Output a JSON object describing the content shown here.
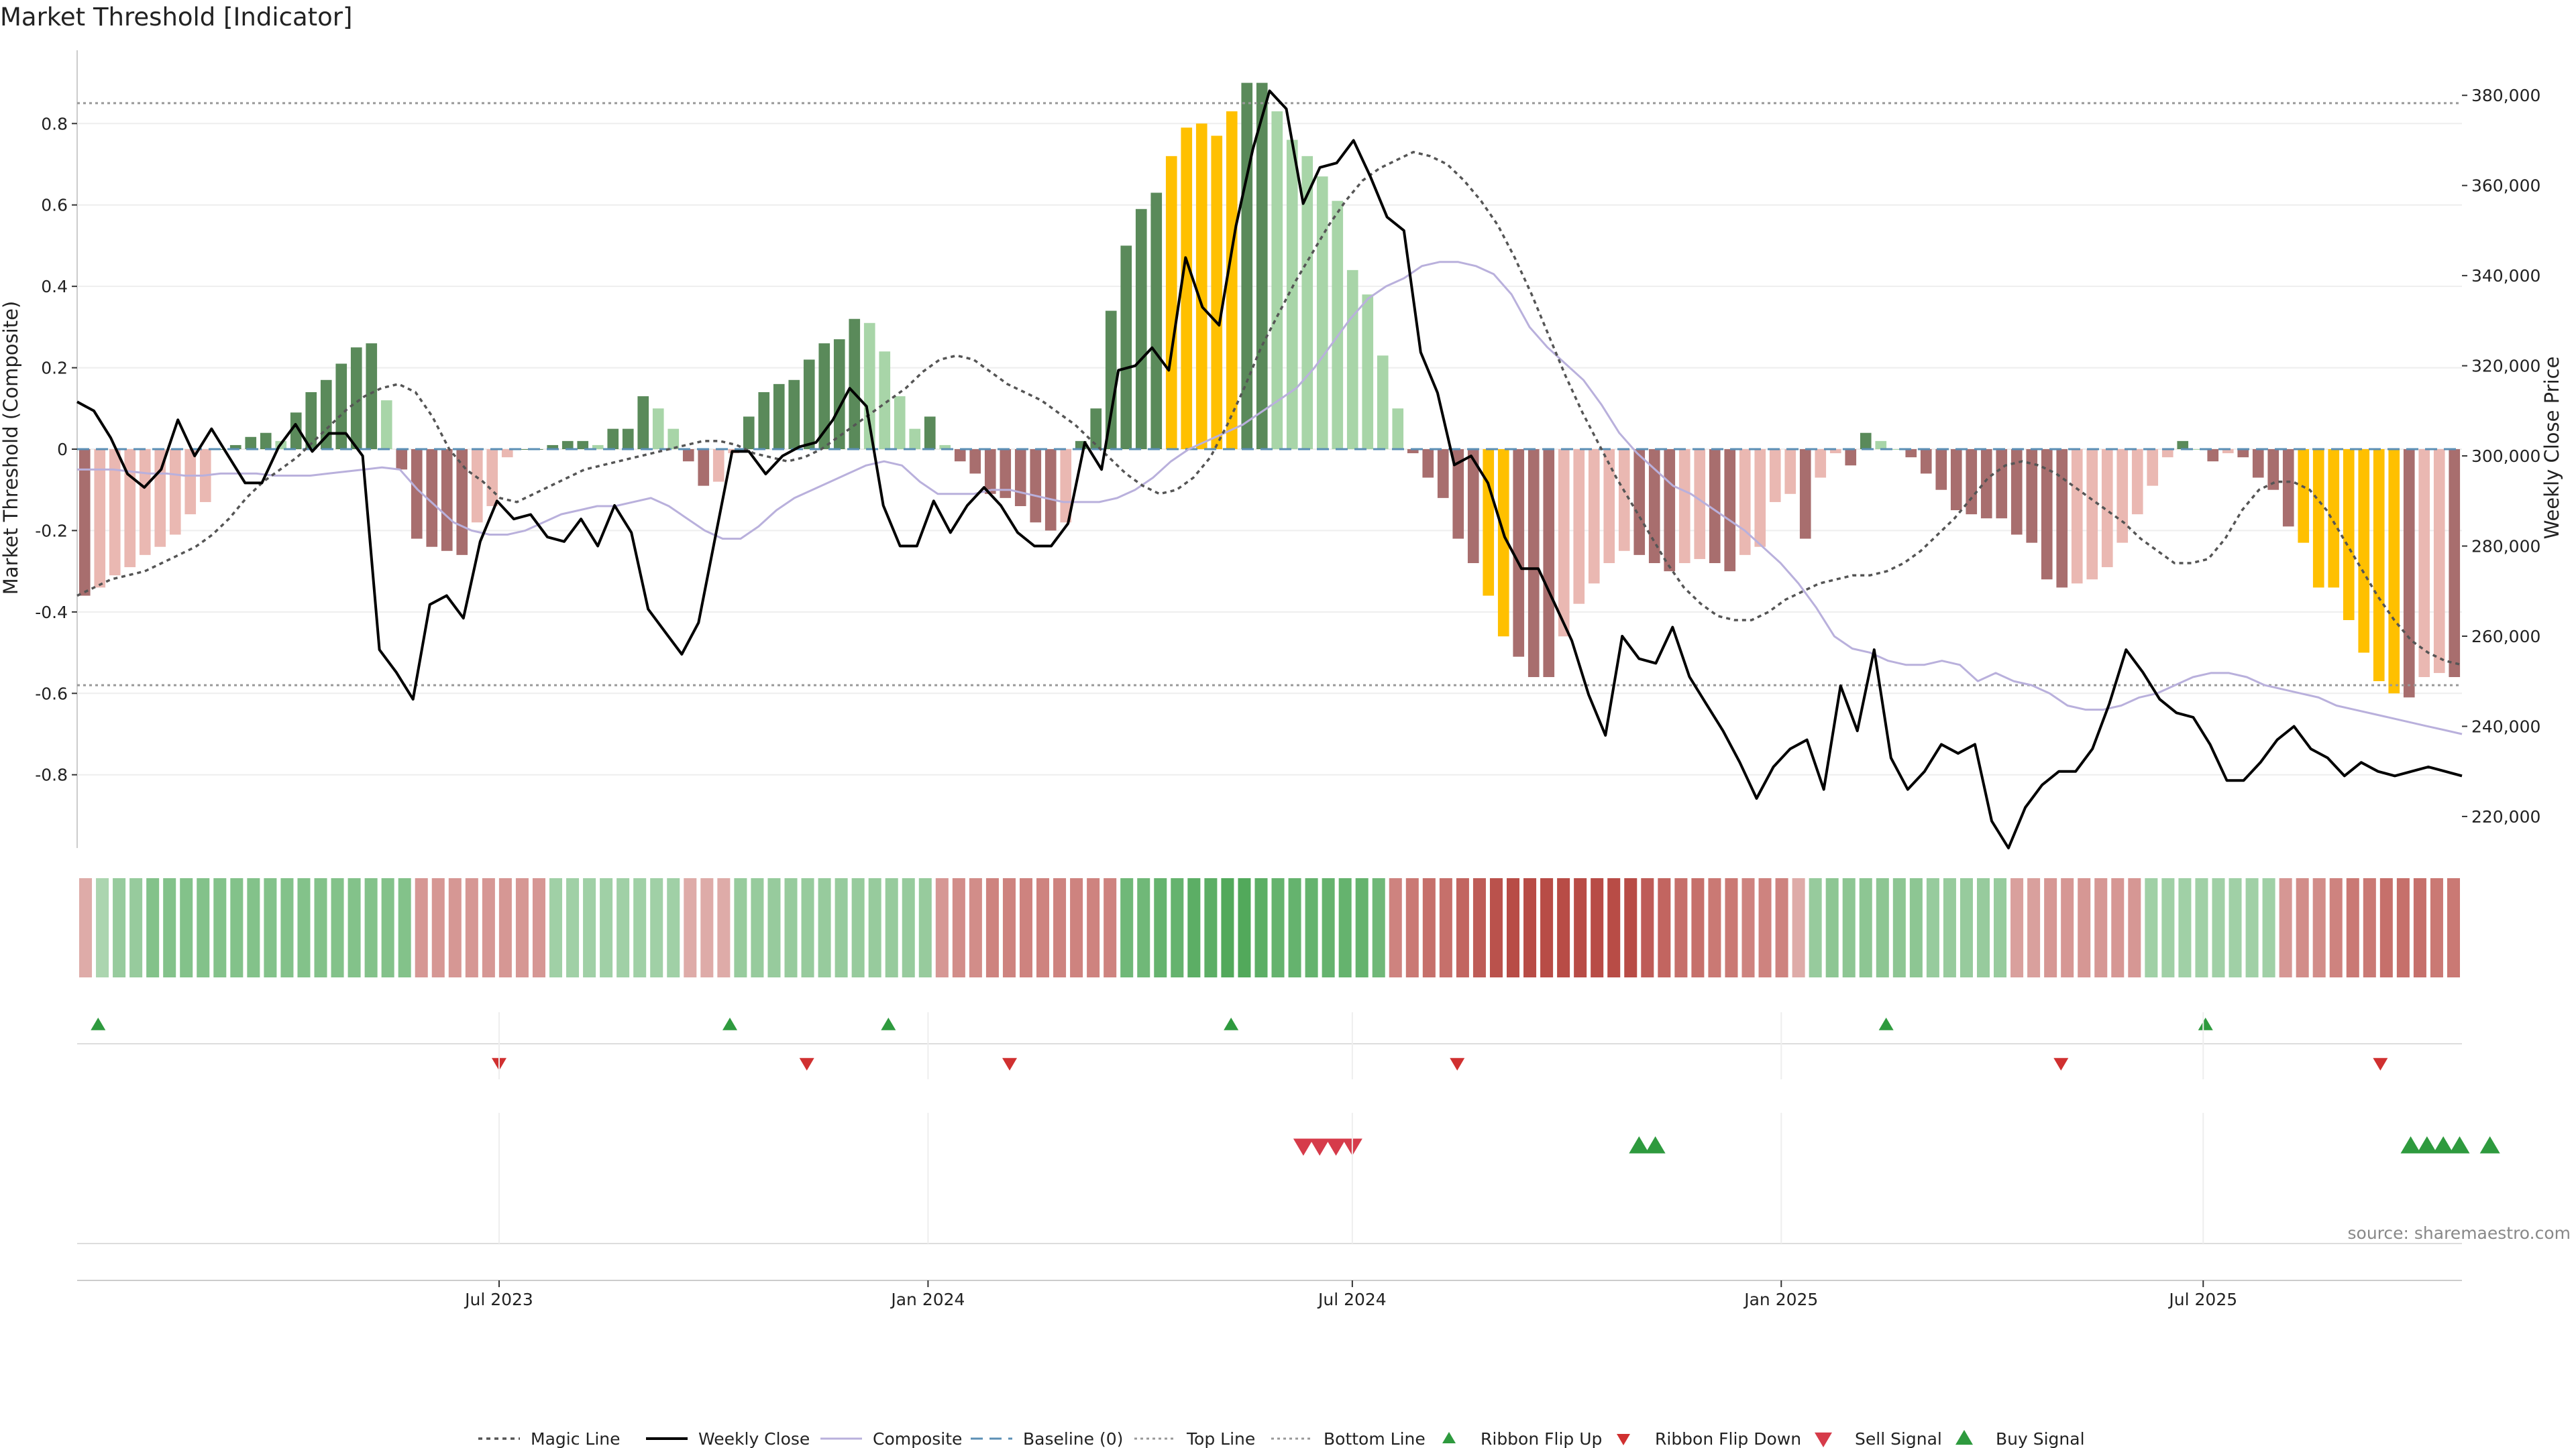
{
  "chart_data": {
    "type": "bar",
    "title": "Market Threshold [Indicator]",
    "source": "source: sharemaestro.com",
    "y_left": {
      "label": "Market Threshold (Composite)",
      "range": [
        -0.98,
        0.98
      ],
      "ticks": [
        {
          "value": 0.8,
          "label": "0.8"
        },
        {
          "value": 0.6,
          "label": "0.6"
        },
        {
          "value": 0.4,
          "label": "0.4"
        },
        {
          "value": 0.2,
          "label": "0.2"
        },
        {
          "value": 0,
          "label": "0"
        },
        {
          "value": -0.2,
          "label": "-0.2"
        },
        {
          "value": -0.4,
          "label": "-0.4"
        },
        {
          "value": -0.6,
          "label": "-0.6"
        },
        {
          "value": -0.8,
          "label": "-0.8"
        }
      ]
    },
    "y_right": {
      "label": "Weekly Close Price",
      "range": [
        213000,
        390000
      ],
      "ticks": [
        {
          "value": 380000,
          "label": "380,000"
        },
        {
          "value": 360000,
          "label": "360,000"
        },
        {
          "value": 340000,
          "label": "340,000"
        },
        {
          "value": 320000,
          "label": "320,000"
        },
        {
          "value": 300000,
          "label": "300,000"
        },
        {
          "value": 280000,
          "label": "280,000"
        },
        {
          "value": 260000,
          "label": "260,000"
        },
        {
          "value": 240000,
          "label": "240,000"
        },
        {
          "value": 220000,
          "label": "220,000"
        }
      ]
    },
    "x_axis": {
      "start_date": "2023-01-01",
      "end_date": "2025-10-20",
      "ticks": [
        {
          "date": "2023-07-01",
          "label": "Jul 2023"
        },
        {
          "date": "2024-01-01",
          "label": "Jan 2024"
        },
        {
          "date": "2024-07-01",
          "label": "Jul 2024"
        },
        {
          "date": "2025-01-01",
          "label": "Jan 2025"
        },
        {
          "date": "2025-07-01",
          "label": "Jul 2025"
        }
      ]
    },
    "top_line": 0.85,
    "bottom_line": -0.58,
    "baseline": 0,
    "colors": {
      "strong_up": "#5a8a5a",
      "weak_up": "#a8d5a8",
      "strong_down": "#a86e6e",
      "weak_down": "#eab8b2",
      "extreme": "#ffc000",
      "weekly_close": "#000000",
      "magic_line": "#555555",
      "composite": "#b9b0dc",
      "baseline": "#5b8fb5",
      "top_bottom": "#999999",
      "ribbon_flip_up": "#2e9a3e",
      "ribbon_flip_down": "#d03030",
      "sell": "#d63b4a",
      "buy": "#2e9a3e"
    },
    "bars": {
      "values": [
        -0.36,
        -0.34,
        -0.31,
        -0.29,
        -0.26,
        -0.24,
        -0.21,
        -0.16,
        -0.13,
        0,
        0.01,
        0.03,
        0.04,
        0.02,
        0.09,
        0.14,
        0.17,
        0.21,
        0.25,
        0.26,
        0.12,
        -0.05,
        -0.22,
        -0.24,
        -0.25,
        -0.26,
        -0.18,
        -0.14,
        -0.02,
        0,
        0,
        0.01,
        0.02,
        0.02,
        0.01,
        0.05,
        0.05,
        0.13,
        0.1,
        0.05,
        -0.03,
        -0.09,
        -0.08,
        -0.01,
        0.08,
        0.14,
        0.16,
        0.17,
        0.22,
        0.26,
        0.27,
        0.32,
        0.31,
        0.24,
        0.13,
        0.05,
        0.08,
        0.01,
        -0.03,
        -0.06,
        -0.11,
        -0.12,
        -0.14,
        -0.18,
        -0.2,
        -0.18,
        0.02,
        0.1,
        0.34,
        0.5,
        0.59,
        0.63,
        0.72,
        0.79,
        0.8,
        0.77,
        0.83,
        0.9,
        0.9,
        0.83,
        0.76,
        0.72,
        0.67,
        0.61,
        0.44,
        0.38,
        0.23,
        0.1,
        -0.01,
        -0.07,
        -0.12,
        -0.22,
        -0.28,
        -0.36,
        -0.46,
        -0.51,
        -0.56,
        -0.56,
        -0.46,
        -0.38,
        -0.33,
        -0.28,
        -0.25,
        -0.26,
        -0.28,
        -0.3,
        -0.28,
        -0.27,
        -0.28,
        -0.3,
        -0.26,
        -0.24,
        -0.13,
        -0.11,
        -0.22,
        -0.07,
        -0.01,
        -0.04,
        0.04,
        0.02,
        0,
        -0.02,
        -0.06,
        -0.1,
        -0.15,
        -0.16,
        -0.17,
        -0.17,
        -0.21,
        -0.23,
        -0.32,
        -0.34,
        -0.33,
        -0.32,
        -0.29,
        -0.23,
        -0.16,
        -0.09,
        -0.02,
        0.02,
        0,
        -0.03,
        -0.01,
        -0.02,
        -0.07,
        -0.1,
        -0.19,
        -0.23,
        -0.34,
        -0.34,
        -0.42,
        -0.5,
        -0.57,
        -0.6,
        -0.61,
        -0.56,
        -0.55,
        -0.56
      ],
      "extreme_indices": [
        72,
        73,
        74,
        75,
        76,
        93,
        94,
        147,
        148,
        149,
        150,
        151,
        152,
        153
      ]
    },
    "weekly_close": [
      312000,
      310000,
      304000,
      296000,
      293000,
      297000,
      308000,
      300000,
      306000,
      300000,
      294000,
      294000,
      302000,
      307000,
      301000,
      305000,
      305000,
      300000,
      257000,
      252000,
      246000,
      267000,
      269000,
      264000,
      281000,
      290000,
      286000,
      287000,
      282000,
      281000,
      286000,
      280000,
      289000,
      283000,
      266000,
      261000,
      256000,
      263000,
      282000,
      301000,
      301000,
      296000,
      300000,
      302000,
      303000,
      308000,
      315000,
      311000,
      289000,
      280000,
      280000,
      290000,
      283000,
      289000,
      293000,
      289000,
      283000,
      280000,
      280000,
      285000,
      303000,
      297000,
      319000,
      320000,
      324000,
      319000,
      344000,
      333000,
      329000,
      351000,
      368000,
      381000,
      377000,
      356000,
      364000,
      365000,
      370000,
      362000,
      353000,
      350000,
      323000,
      314000,
      298000,
      300000,
      294000,
      282000,
      275000,
      275000,
      267000,
      259000,
      247000,
      238000,
      260000,
      255000,
      254000,
      262000,
      251000,
      245000,
      239000,
      232000,
      224000,
      231000,
      235000,
      237000,
      226000,
      249000,
      239000,
      257000,
      233000,
      226000,
      230000,
      236000,
      234000,
      236000,
      219000,
      213000,
      222000,
      227000,
      230000,
      230000,
      235000,
      245000,
      257000,
      252000,
      246000,
      243000,
      242000,
      236000,
      228000,
      228000,
      232000,
      237000,
      240000,
      235000,
      233000,
      229000,
      232000,
      230000,
      229000,
      230000,
      231000,
      230000,
      229000
    ],
    "magic_line": [
      -0.36,
      -0.34,
      -0.32,
      -0.31,
      -0.3,
      -0.28,
      -0.26,
      -0.24,
      -0.21,
      -0.17,
      -0.12,
      -0.08,
      -0.05,
      -0.02,
      0.02,
      0.06,
      0.1,
      0.13,
      0.15,
      0.16,
      0.14,
      0.08,
      0,
      -0.05,
      -0.08,
      -0.12,
      -0.13,
      -0.11,
      -0.09,
      -0.07,
      -0.05,
      -0.04,
      -0.03,
      -0.02,
      -0.01,
      0,
      0.01,
      0.02,
      0.02,
      0.01,
      -0.01,
      -0.02,
      -0.03,
      -0.02,
      0,
      0.03,
      0.06,
      0.09,
      0.12,
      0.15,
      0.19,
      0.22,
      0.23,
      0.22,
      0.19,
      0.16,
      0.14,
      0.12,
      0.09,
      0.06,
      0.02,
      -0.02,
      -0.06,
      -0.09,
      -0.11,
      -0.1,
      -0.07,
      -0.02,
      0.06,
      0.15,
      0.25,
      0.33,
      0.41,
      0.48,
      0.55,
      0.61,
      0.66,
      0.69,
      0.71,
      0.73,
      0.72,
      0.7,
      0.66,
      0.61,
      0.55,
      0.47,
      0.38,
      0.28,
      0.18,
      0.09,
      0.01,
      -0.07,
      -0.14,
      -0.21,
      -0.28,
      -0.34,
      -0.38,
      -0.41,
      -0.42,
      -0.42,
      -0.4,
      -0.37,
      -0.35,
      -0.33,
      -0.32,
      -0.31,
      -0.31,
      -0.3,
      -0.28,
      -0.25,
      -0.21,
      -0.17,
      -0.12,
      -0.07,
      -0.04,
      -0.03,
      -0.04,
      -0.06,
      -0.09,
      -0.12,
      -0.15,
      -0.18,
      -0.22,
      -0.25,
      -0.28,
      -0.28,
      -0.27,
      -0.22,
      -0.15,
      -0.1,
      -0.08,
      -0.08,
      -0.1,
      -0.15,
      -0.22,
      -0.29,
      -0.36,
      -0.42,
      -0.47,
      -0.5,
      -0.52,
      -0.53
    ],
    "composite": [
      -0.05,
      -0.05,
      -0.05,
      -0.055,
      -0.06,
      -0.06,
      -0.065,
      -0.065,
      -0.06,
      -0.06,
      -0.06,
      -0.065,
      -0.065,
      -0.065,
      -0.06,
      -0.055,
      -0.05,
      -0.045,
      -0.05,
      -0.1,
      -0.14,
      -0.18,
      -0.2,
      -0.21,
      -0.21,
      -0.2,
      -0.18,
      -0.16,
      -0.15,
      -0.14,
      -0.14,
      -0.13,
      -0.12,
      -0.14,
      -0.17,
      -0.2,
      -0.22,
      -0.22,
      -0.19,
      -0.15,
      -0.12,
      -0.1,
      -0.08,
      -0.06,
      -0.04,
      -0.03,
      -0.04,
      -0.08,
      -0.11,
      -0.11,
      -0.11,
      -0.1,
      -0.1,
      -0.11,
      -0.12,
      -0.13,
      -0.13,
      -0.13,
      -0.12,
      -0.1,
      -0.07,
      -0.03,
      0,
      0.02,
      0.04,
      0.06,
      0.09,
      0.12,
      0.15,
      0.2,
      0.26,
      0.32,
      0.37,
      0.4,
      0.42,
      0.45,
      0.46,
      0.46,
      0.45,
      0.43,
      0.38,
      0.3,
      0.25,
      0.21,
      0.17,
      0.11,
      0.04,
      -0.01,
      -0.05,
      -0.09,
      -0.11,
      -0.14,
      -0.17,
      -0.2,
      -0.24,
      -0.28,
      -0.33,
      -0.39,
      -0.46,
      -0.49,
      -0.5,
      -0.52,
      -0.53,
      -0.53,
      -0.52,
      -0.53,
      -0.57,
      -0.55,
      -0.57,
      -0.58,
      -0.6,
      -0.63,
      -0.64,
      -0.64,
      -0.63,
      -0.61,
      -0.6,
      -0.58,
      -0.56,
      -0.55,
      -0.55,
      -0.56,
      -0.58,
      -0.59,
      -0.6,
      -0.61,
      -0.63,
      -0.64,
      -0.65,
      -0.66,
      -0.67,
      -0.68,
      -0.69,
      -0.7
    ],
    "ribbon": {
      "values": [
        -0.2,
        0.2,
        0.3,
        0.3,
        0.4,
        0.4,
        0.4,
        0.4,
        0.4,
        0.4,
        0.4,
        0.4,
        0.4,
        0.4,
        0.4,
        0.4,
        0.4,
        0.4,
        0.4,
        0.4,
        -0.3,
        -0.3,
        -0.3,
        -0.3,
        -0.3,
        -0.3,
        -0.3,
        -0.3,
        0.25,
        0.25,
        0.25,
        0.25,
        0.25,
        0.25,
        0.25,
        0.25,
        -0.2,
        -0.2,
        -0.2,
        0.3,
        0.3,
        0.3,
        0.3,
        0.3,
        0.3,
        0.3,
        0.3,
        0.3,
        0.3,
        0.3,
        0.3,
        -0.3,
        -0.35,
        -0.35,
        -0.4,
        -0.4,
        -0.4,
        -0.4,
        -0.4,
        -0.4,
        -0.4,
        -0.4,
        0.5,
        0.5,
        0.55,
        0.55,
        0.6,
        0.6,
        0.65,
        0.65,
        0.6,
        0.55,
        0.55,
        0.55,
        0.55,
        0.55,
        0.55,
        0.5,
        -0.4,
        -0.45,
        -0.5,
        -0.5,
        -0.55,
        -0.6,
        -0.65,
        -0.7,
        -0.7,
        -0.7,
        -0.75,
        -0.75,
        -0.75,
        -0.7,
        -0.7,
        -0.6,
        -0.55,
        -0.5,
        -0.5,
        -0.45,
        -0.45,
        -0.4,
        -0.4,
        -0.4,
        -0.2,
        0.3,
        0.35,
        0.35,
        0.35,
        0.35,
        0.35,
        0.35,
        0.3,
        0.3,
        0.3,
        0.3,
        0.3,
        -0.25,
        -0.25,
        -0.3,
        -0.3,
        -0.3,
        -0.3,
        -0.3,
        -0.3,
        0.25,
        0.25,
        0.25,
        0.25,
        0.25,
        0.25,
        0.25,
        0.25,
        -0.3,
        -0.35,
        -0.35,
        -0.4,
        -0.45,
        -0.45,
        -0.5,
        -0.5,
        -0.5,
        -0.45,
        -0.45
      ]
    },
    "ribbon_flip_up_dates": [
      "2023-01-10",
      "2023-10-08",
      "2023-12-15",
      "2024-05-10",
      "2025-02-15",
      "2025-07-02"
    ],
    "ribbon_flip_down_dates": [
      "2023-07-01",
      "2023-11-10",
      "2024-02-05",
      "2024-08-15",
      "2025-05-01",
      "2025-09-15"
    ],
    "sell_signal_dates": [
      "2024-06-10",
      "2024-06-17",
      "2024-06-24",
      "2024-07-01"
    ],
    "buy_signal_dates": [
      "2024-11-01",
      "2024-11-08",
      "2025-09-28",
      "2025-10-05",
      "2025-10-12",
      "2025-10-19",
      "2025-11-01"
    ],
    "legend": [
      {
        "key": "magic_line",
        "label": "Magic Line"
      },
      {
        "key": "weekly_close",
        "label": "Weekly Close"
      },
      {
        "key": "composite",
        "label": "Composite"
      },
      {
        "key": "baseline",
        "label": "Baseline (0)"
      },
      {
        "key": "top_line",
        "label": "Top Line"
      },
      {
        "key": "bottom_line",
        "label": "Bottom Line"
      },
      {
        "key": "ribbon_flip_up",
        "label": "Ribbon Flip Up"
      },
      {
        "key": "ribbon_flip_down",
        "label": "Ribbon Flip Down"
      },
      {
        "key": "sell_signal",
        "label": "Sell Signal"
      },
      {
        "key": "buy_signal",
        "label": "Buy Signal"
      }
    ],
    "legend_position": "bottom-center"
  }
}
